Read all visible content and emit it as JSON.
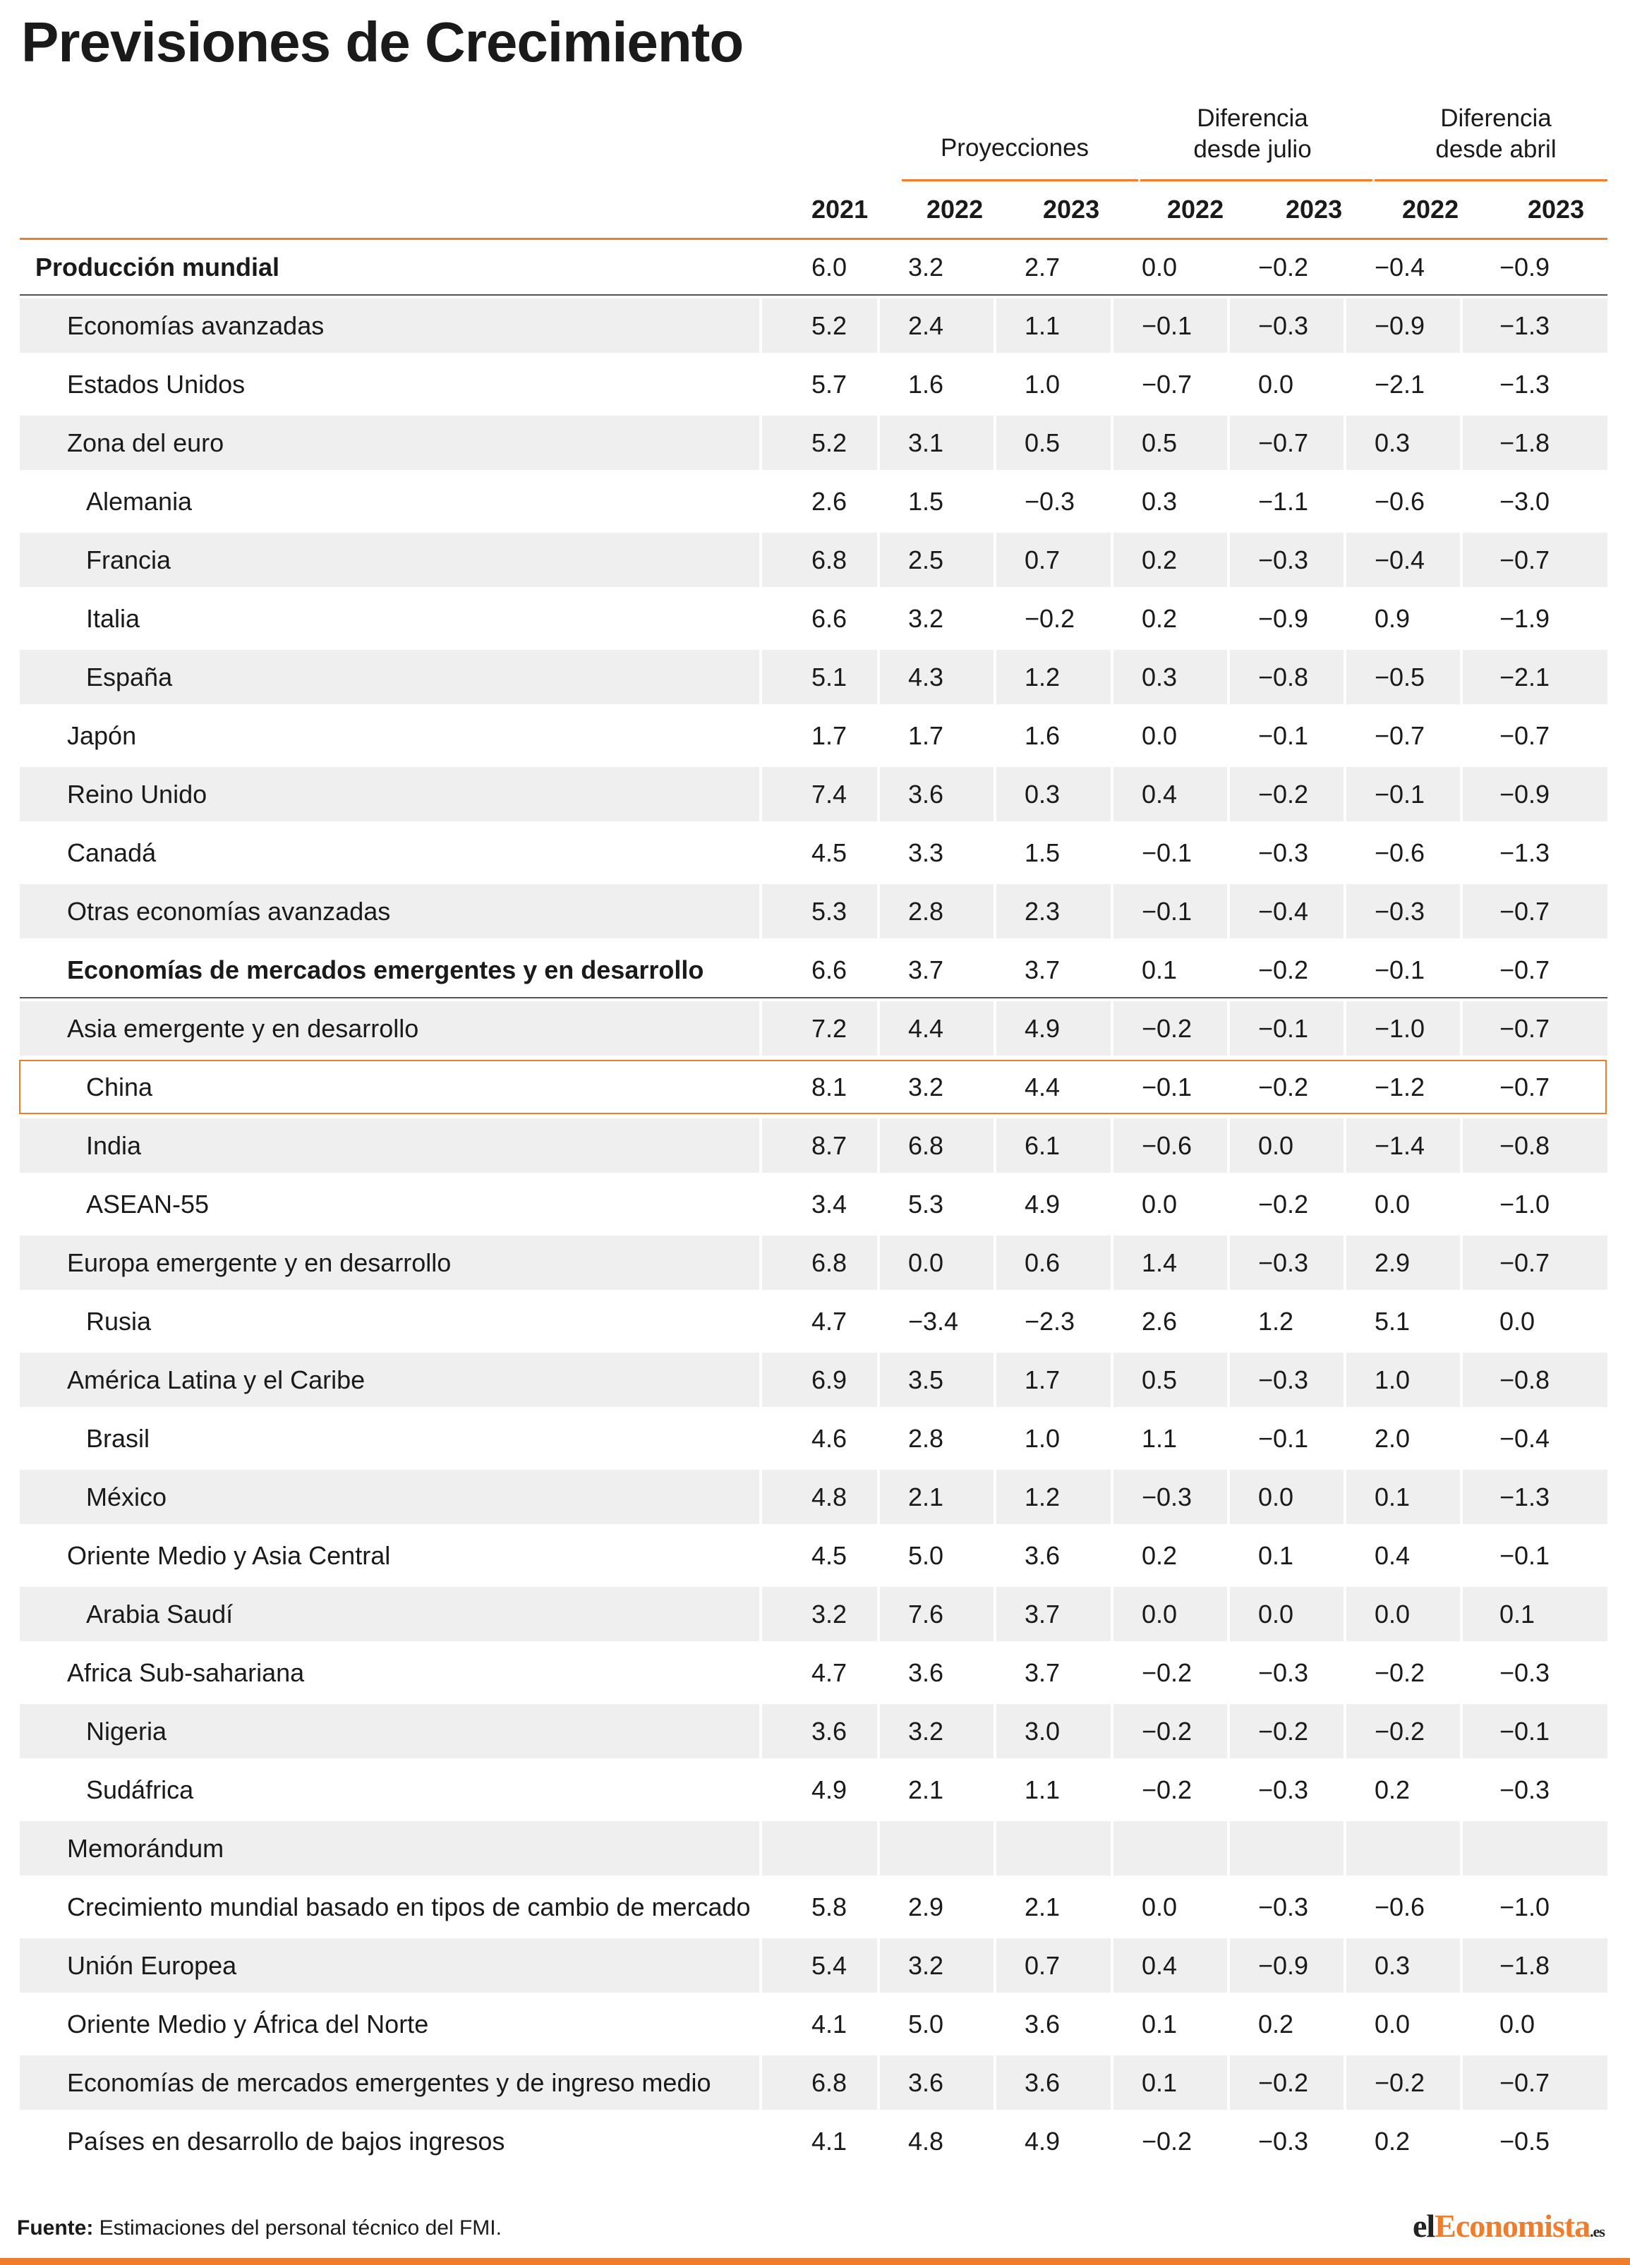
{
  "title": "Previsiones de Crecimiento",
  "groups": {
    "proyecciones": "Proyecciones",
    "dif_julio_l1": "Diferencia",
    "dif_julio_l2": "desde julio",
    "dif_abril_l1": "Diferencia",
    "dif_abril_l2": "desde abril"
  },
  "colors": {
    "accent": "#f07d2c",
    "shade": "#efefef",
    "text": "#1a1a1a"
  },
  "chart_data": {
    "type": "table",
    "title": "Previsiones de Crecimiento",
    "columns": [
      "2021",
      "2022",
      "2023",
      "2022",
      "2023",
      "2022",
      "2023"
    ],
    "column_groups": [
      "",
      "Proyecciones",
      "Proyecciones",
      "Diferencia desde julio",
      "Diferencia desde julio",
      "Diferencia desde abril",
      "Diferencia desde abril"
    ],
    "rows": [
      {
        "label": "Producción mundial",
        "indent": 0,
        "bold": true,
        "values": [
          "6.0",
          "3.2",
          "2.7",
          "0.0",
          "−0.2",
          "−0.4",
          "−0.9"
        ]
      },
      {
        "label": "Economías avanzadas",
        "indent": 1,
        "values": [
          "5.2",
          "2.4",
          "1.1",
          "−0.1",
          "−0.3",
          "−0.9",
          "−1.3"
        ]
      },
      {
        "label": "Estados Unidos",
        "indent": 1,
        "values": [
          "5.7",
          "1.6",
          "1.0",
          "−0.7",
          "0.0",
          "−2.1",
          "−1.3"
        ]
      },
      {
        "label": "Zona del euro",
        "indent": 1,
        "values": [
          "5.2",
          "3.1",
          "0.5",
          "0.5",
          "−0.7",
          "0.3",
          "−1.8"
        ]
      },
      {
        "label": "Alemania",
        "indent": 2,
        "values": [
          "2.6",
          "1.5",
          "−0.3",
          "0.3",
          "−1.1",
          "−0.6",
          "−3.0"
        ]
      },
      {
        "label": "Francia",
        "indent": 2,
        "values": [
          "6.8",
          "2.5",
          "0.7",
          "0.2",
          "−0.3",
          "−0.4",
          "−0.7"
        ]
      },
      {
        "label": "Italia",
        "indent": 2,
        "values": [
          "6.6",
          "3.2",
          "−0.2",
          "0.2",
          "−0.9",
          "0.9",
          "−1.9"
        ]
      },
      {
        "label": "España",
        "indent": 2,
        "values": [
          "5.1",
          "4.3",
          "1.2",
          "0.3",
          "−0.8",
          "−0.5",
          "−2.1"
        ]
      },
      {
        "label": "Japón",
        "indent": 1,
        "values": [
          "1.7",
          "1.7",
          "1.6",
          "0.0",
          "−0.1",
          "−0.7",
          "−0.7"
        ]
      },
      {
        "label": "Reino Unido",
        "indent": 1,
        "values": [
          "7.4",
          "3.6",
          "0.3",
          "0.4",
          "−0.2",
          "−0.1",
          "−0.9"
        ]
      },
      {
        "label": "Canadá",
        "indent": 1,
        "values": [
          "4.5",
          "3.3",
          "1.5",
          "−0.1",
          "−0.3",
          "−0.6",
          "−1.3"
        ]
      },
      {
        "label": "Otras economías avanzadas",
        "indent": 1,
        "values": [
          "5.3",
          "2.8",
          "2.3",
          "−0.1",
          "−0.4",
          "−0.3",
          "−0.7"
        ]
      },
      {
        "label": "Economías de mercados emergentes y en desarrollo",
        "indent": 1,
        "bold": true,
        "values": [
          "6.6",
          "3.7",
          "3.7",
          "0.1",
          "−0.2",
          "−0.1",
          "−0.7"
        ]
      },
      {
        "label": "Asia emergente y en desarrollo",
        "indent": 1,
        "values": [
          "7.2",
          "4.4",
          "4.9",
          "−0.2",
          "−0.1",
          "−1.0",
          "−0.7"
        ]
      },
      {
        "label": "China",
        "indent": 2,
        "highlight": true,
        "values": [
          "8.1",
          "3.2",
          "4.4",
          "−0.1",
          "−0.2",
          "−1.2",
          "−0.7"
        ]
      },
      {
        "label": "India",
        "indent": 2,
        "values": [
          "8.7",
          "6.8",
          "6.1",
          "−0.6",
          "0.0",
          "−1.4",
          "−0.8"
        ]
      },
      {
        "label": "ASEAN-55",
        "indent": 2,
        "values": [
          "3.4",
          "5.3",
          "4.9",
          "0.0",
          "−0.2",
          "0.0",
          "−1.0"
        ]
      },
      {
        "label": "Europa emergente y en desarrollo",
        "indent": 1,
        "values": [
          "6.8",
          "0.0",
          "0.6",
          "1.4",
          "−0.3",
          "2.9",
          "−0.7"
        ]
      },
      {
        "label": "Rusia",
        "indent": 2,
        "values": [
          "4.7",
          "−3.4",
          "−2.3",
          "2.6",
          "1.2",
          "5.1",
          "0.0"
        ]
      },
      {
        "label": "América Latina y el Caribe",
        "indent": 1,
        "values": [
          "6.9",
          "3.5",
          "1.7",
          "0.5",
          "−0.3",
          "1.0",
          "−0.8"
        ]
      },
      {
        "label": "Brasil",
        "indent": 2,
        "values": [
          "4.6",
          "2.8",
          "1.0",
          "1.1",
          "−0.1",
          "2.0",
          "−0.4"
        ]
      },
      {
        "label": "México",
        "indent": 2,
        "values": [
          "4.8",
          "2.1",
          "1.2",
          "−0.3",
          "0.0",
          "0.1",
          "−1.3"
        ]
      },
      {
        "label": "Oriente Medio y Asia Central",
        "indent": 1,
        "values": [
          "4.5",
          "5.0",
          "3.6",
          "0.2",
          "0.1",
          "0.4",
          "−0.1"
        ]
      },
      {
        "label": "Arabia Saudí",
        "indent": 2,
        "values": [
          "3.2",
          "7.6",
          "3.7",
          "0.0",
          "0.0",
          "0.0",
          "0.1"
        ]
      },
      {
        "label": "Africa Sub-sahariana",
        "indent": 1,
        "values": [
          "4.7",
          "3.6",
          "3.7",
          "−0.2",
          "−0.3",
          "−0.2",
          "−0.3"
        ]
      },
      {
        "label": "Nigeria",
        "indent": 2,
        "values": [
          "3.6",
          "3.2",
          "3.0",
          "−0.2",
          "−0.2",
          "−0.2",
          "−0.1"
        ]
      },
      {
        "label": "Sudáfrica",
        "indent": 2,
        "values": [
          "4.9",
          "2.1",
          "1.1",
          "−0.2",
          "−0.3",
          "0.2",
          "−0.3"
        ]
      },
      {
        "label": "Memorándum",
        "indent": 1,
        "values": [
          "",
          "",
          "",
          "",
          "",
          "",
          ""
        ]
      },
      {
        "label": "Crecimiento mundial basado en tipos de cambio de mercado",
        "indent": 1,
        "values": [
          "5.8",
          "2.9",
          "2.1",
          "0.0",
          "−0.3",
          "−0.6",
          "−1.0"
        ]
      },
      {
        "label": "Unión Europea",
        "indent": 1,
        "values": [
          "5.4",
          "3.2",
          "0.7",
          "0.4",
          "−0.9",
          "0.3",
          "−1.8"
        ]
      },
      {
        "label": "Oriente Medio y África del Norte",
        "indent": 1,
        "values": [
          "4.1",
          "5.0",
          "3.6",
          "0.1",
          "0.2",
          "0.0",
          "0.0"
        ]
      },
      {
        "label": "Economías de mercados emergentes y de ingreso medio",
        "indent": 1,
        "values": [
          "6.8",
          "3.6",
          "3.6",
          "0.1",
          "−0.2",
          "−0.2",
          "−0.7"
        ]
      },
      {
        "label": "Países en desarrollo de bajos ingresos",
        "indent": 1,
        "values": [
          "4.1",
          "4.8",
          "4.9",
          "−0.2",
          "−0.3",
          "0.2",
          "−0.5"
        ]
      }
    ]
  },
  "footer": {
    "source_label": "Fuente:",
    "source_text": " Estimaciones del personal técnico del FMI.",
    "logo_pre": "el",
    "logo_accent": "Economista",
    "logo_suffix": ".es"
  }
}
